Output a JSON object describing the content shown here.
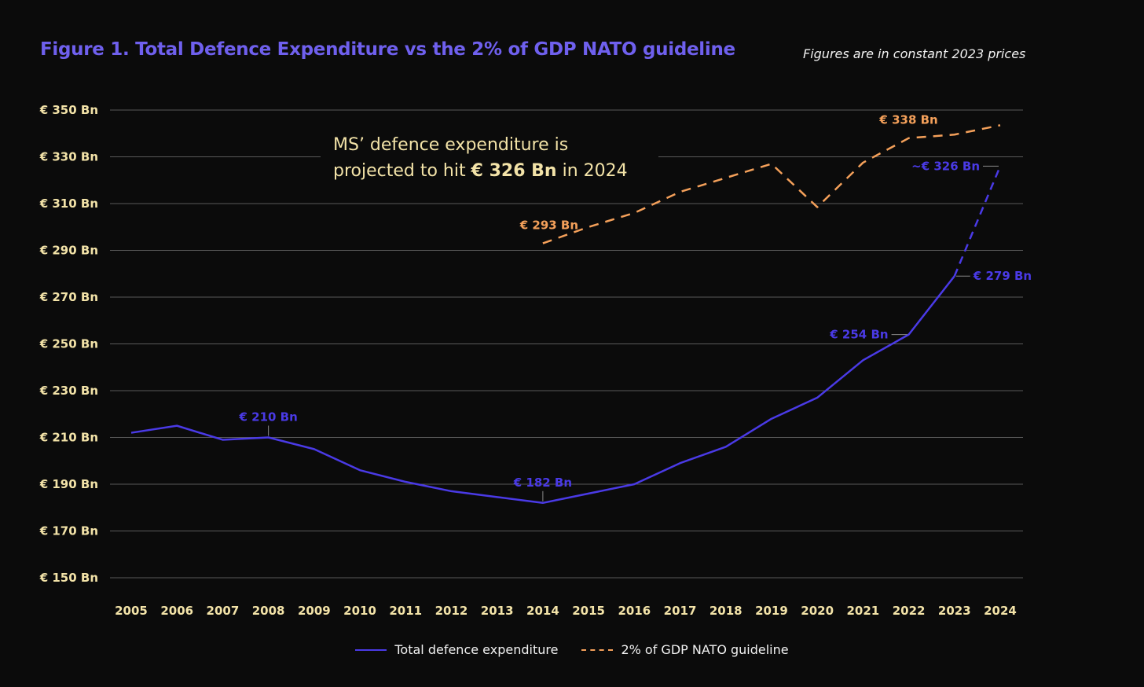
{
  "chart_data": {
    "type": "line",
    "title": "Figure 1. Total Defence Expenditure vs the 2% of GDP NATO guideline",
    "subtitle": "Figures are in constant 2023 prices",
    "x": [
      2005,
      2006,
      2007,
      2008,
      2009,
      2010,
      2011,
      2012,
      2013,
      2014,
      2015,
      2016,
      2017,
      2018,
      2019,
      2020,
      2021,
      2022,
      2023,
      2024
    ],
    "x_tick_labels": [
      "2005",
      "2006",
      "2007",
      "2008",
      "2009",
      "2010",
      "2011",
      "2012",
      "2013",
      "2014",
      "2015",
      "2016",
      "2017",
      "2018",
      "2019",
      "2020",
      "2021",
      "2022",
      "2023",
      "2024"
    ],
    "ylim": [
      150,
      350
    ],
    "y_ticks": [
      150,
      170,
      190,
      210,
      230,
      250,
      270,
      290,
      310,
      330,
      350
    ],
    "y_tick_labels": [
      "€ 150 Bn",
      "€ 170 Bn",
      "€ 190 Bn",
      "€ 210 Bn",
      "€ 230 Bn",
      "€ 250 Bn",
      "€ 270 Bn",
      "€ 290 Bn",
      "€ 310 Bn",
      "€ 330 Bn",
      "€ 350 Bn"
    ],
    "grid": true,
    "legend_position": "bottom-center",
    "series": [
      {
        "name": "Total defence expenditure",
        "color": "#4a3ae6",
        "style": "solid",
        "projected_from": 2023,
        "values": [
          212,
          215,
          209,
          210,
          205,
          196,
          191,
          187,
          184.5,
          182,
          186,
          190,
          199,
          206,
          218,
          227,
          243,
          254,
          279,
          326
        ]
      },
      {
        "name": "2% of GDP NATO guideline",
        "color": "#f4a05a",
        "style": "dashed",
        "values": [
          null,
          null,
          null,
          null,
          null,
          null,
          null,
          null,
          null,
          293,
          300,
          306,
          315,
          321,
          327,
          308.5,
          327.5,
          338,
          339.5,
          343.5
        ]
      }
    ],
    "data_labels": [
      {
        "series": 0,
        "x": 2008,
        "text": "€ 210 Bn",
        "pos": "above"
      },
      {
        "series": 0,
        "x": 2014,
        "text": "€ 182 Bn",
        "pos": "above"
      },
      {
        "series": 0,
        "x": 2022,
        "text": "€ 254 Bn",
        "pos": "left"
      },
      {
        "series": 0,
        "x": 2023,
        "text": "€ 279 Bn",
        "pos": "right"
      },
      {
        "series": 0,
        "x": 2024,
        "text": "~€ 326 Bn",
        "pos": "left"
      },
      {
        "series": 1,
        "x": 2014,
        "text": "€ 293 Bn",
        "pos": "above"
      },
      {
        "series": 1,
        "x": 2022,
        "text": "€ 338 Bn",
        "pos": "above"
      }
    ],
    "annotation": {
      "line1": "MS’ defence expenditure is",
      "line2_pre": "projected to hit ",
      "line2_bold": "€ 326 Bn",
      "line2_post": " in 2024"
    }
  }
}
